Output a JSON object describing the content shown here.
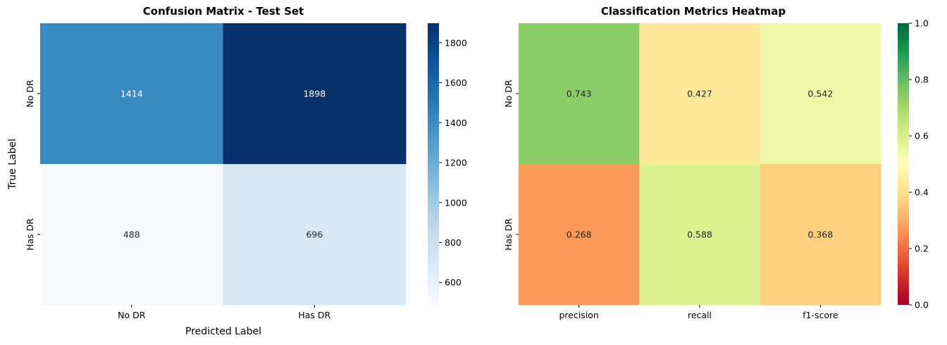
{
  "chart_data": [
    {
      "type": "heatmap",
      "title": "Confusion Matrix - Test Set",
      "xlabel": "Predicted Label",
      "ylabel": "True Label",
      "x_categories": [
        "No DR",
        "Has DR"
      ],
      "y_categories": [
        "No DR",
        "Has DR"
      ],
      "values": [
        [
          1414,
          1898
        ],
        [
          488,
          696
        ]
      ],
      "colormap": "Blues",
      "colorbar": {
        "vmin": 488,
        "vmax": 1898,
        "ticks": [
          600,
          800,
          1000,
          1200,
          1400,
          1600,
          1800
        ]
      },
      "value_format": "integer"
    },
    {
      "type": "heatmap",
      "title": "Classification Metrics Heatmap",
      "xlabel": "",
      "ylabel": "",
      "x_categories": [
        "precision",
        "recall",
        "f1-score"
      ],
      "y_categories": [
        "No DR",
        "Has DR"
      ],
      "values": [
        [
          0.743,
          0.427,
          0.542
        ],
        [
          0.268,
          0.588,
          0.368
        ]
      ],
      "colormap": "RdYlGn",
      "colorbar": {
        "vmin": 0,
        "vmax": 1,
        "ticks": [
          0.0,
          0.2,
          0.4,
          0.6,
          0.8,
          1.0
        ]
      },
      "value_format": "3dp"
    }
  ]
}
